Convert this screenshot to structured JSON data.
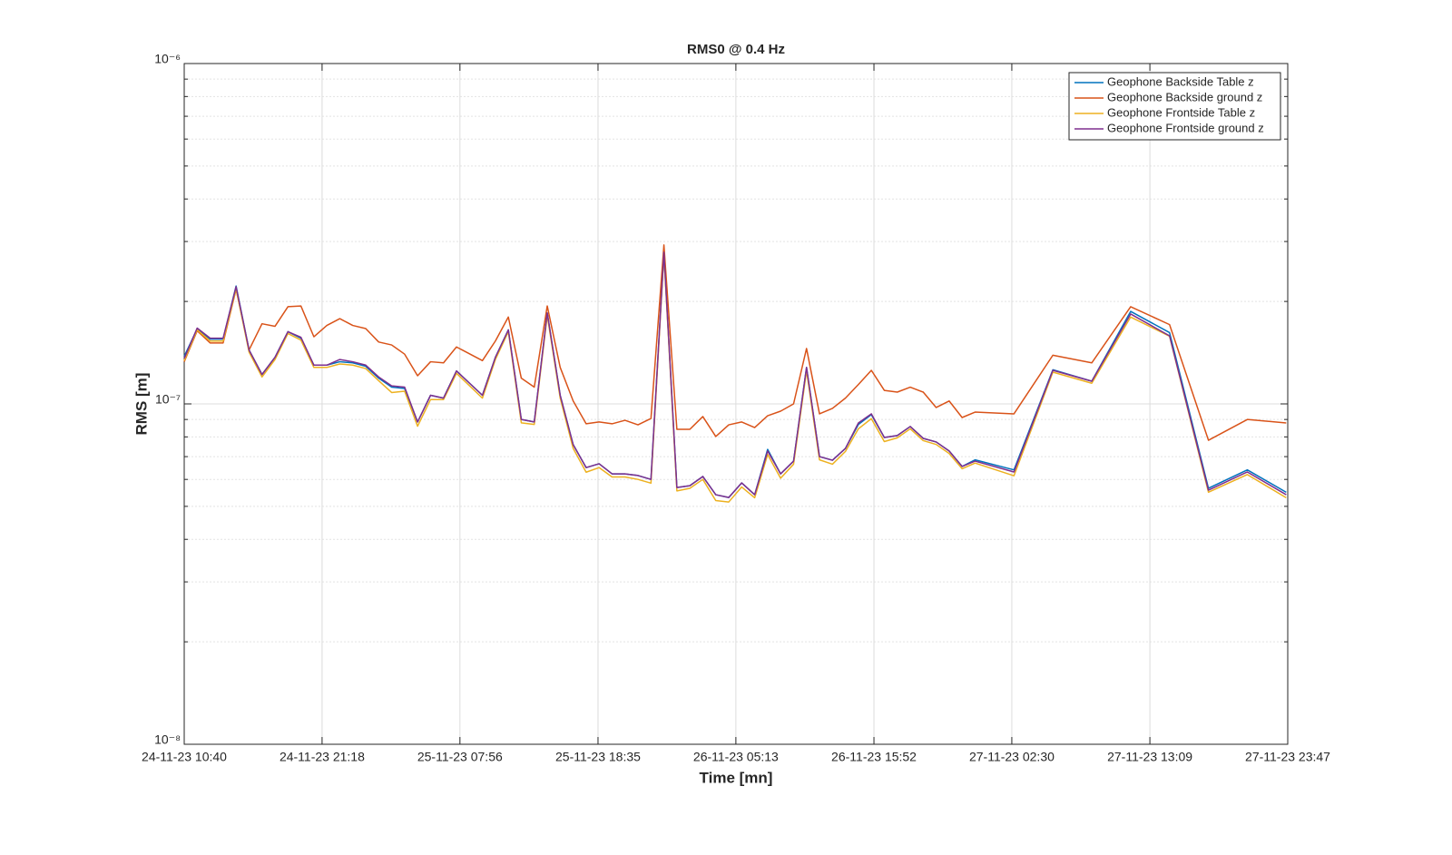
{
  "chart_data": {
    "type": "line",
    "title": "RMS0 @ 0.4 Hz",
    "x_label": "Time [mn]",
    "y_label": "RMS [m]",
    "log_y": true,
    "grid": true,
    "minor_grid": true,
    "legend_position": "top-right",
    "xlim": [
      "2023-11-24T10:40",
      "2023-11-27T23:47"
    ],
    "xticks": [
      {
        "value": "2023-11-24T10:40",
        "label": "24-11-23 10:40"
      },
      {
        "value": "2023-11-24T21:18",
        "label": "24-11-23 21:18"
      },
      {
        "value": "2023-11-25T07:56",
        "label": "25-11-23 07:56"
      },
      {
        "value": "2023-11-25T18:35",
        "label": "25-11-23 18:35"
      },
      {
        "value": "2023-11-26T05:13",
        "label": "26-11-23 05:13"
      },
      {
        "value": "2023-11-26T15:52",
        "label": "26-11-23 15:52"
      },
      {
        "value": "2023-11-27T02:30",
        "label": "27-11-23 02:30"
      },
      {
        "value": "2023-11-27T13:09",
        "label": "27-11-23 13:09"
      },
      {
        "value": "2023-11-27T23:47",
        "label": "27-11-23 23:47"
      }
    ],
    "ylim": [
      1e-08,
      1e-06
    ],
    "yticks": [
      {
        "value": 1e-08,
        "label": "10⁻⁸"
      },
      {
        "value": 1e-07,
        "label": "10⁻⁷"
      },
      {
        "value": 1e-06,
        "label": "10⁻⁶"
      }
    ],
    "x": [
      "2023-11-24T10:40",
      "2023-11-24T11:40",
      "2023-11-24T12:40",
      "2023-11-24T13:40",
      "2023-11-24T14:40",
      "2023-11-24T15:40",
      "2023-11-24T16:40",
      "2023-11-24T17:40",
      "2023-11-24T18:40",
      "2023-11-24T19:40",
      "2023-11-24T20:40",
      "2023-11-24T21:40",
      "2023-11-24T22:40",
      "2023-11-24T23:40",
      "2023-11-25T00:40",
      "2023-11-25T01:40",
      "2023-11-25T02:40",
      "2023-11-25T03:40",
      "2023-11-25T04:40",
      "2023-11-25T05:40",
      "2023-11-25T06:40",
      "2023-11-25T07:40",
      "2023-11-25T09:40",
      "2023-11-25T10:40",
      "2023-11-25T11:40",
      "2023-11-25T12:40",
      "2023-11-25T13:40",
      "2023-11-25T14:40",
      "2023-11-25T15:40",
      "2023-11-25T16:40",
      "2023-11-25T17:40",
      "2023-11-25T18:40",
      "2023-11-25T19:40",
      "2023-11-25T20:40",
      "2023-11-25T21:40",
      "2023-11-25T22:40",
      "2023-11-25T23:40",
      "2023-11-26T00:40",
      "2023-11-26T01:40",
      "2023-11-26T02:40",
      "2023-11-26T03:40",
      "2023-11-26T04:40",
      "2023-11-26T05:40",
      "2023-11-26T06:40",
      "2023-11-26T07:40",
      "2023-11-26T08:40",
      "2023-11-26T09:40",
      "2023-11-26T10:40",
      "2023-11-26T11:40",
      "2023-11-26T12:40",
      "2023-11-26T13:40",
      "2023-11-26T14:40",
      "2023-11-26T15:40",
      "2023-11-26T16:40",
      "2023-11-26T17:40",
      "2023-11-26T18:40",
      "2023-11-26T19:40",
      "2023-11-26T20:40",
      "2023-11-26T21:40",
      "2023-11-26T22:40",
      "2023-11-26T23:40",
      "2023-11-27T02:40",
      "2023-11-27T05:40",
      "2023-11-27T08:40",
      "2023-11-27T11:40",
      "2023-11-27T14:40",
      "2023-11-27T17:40",
      "2023-11-27T20:40",
      "2023-11-27T23:40"
    ],
    "series": [
      {
        "name": "Geophone Backside Table z",
        "color": "#0072BD",
        "values": [
          1.38e-07,
          1.66e-07,
          1.55e-07,
          1.55e-07,
          2.22e-07,
          1.44e-07,
          1.22e-07,
          1.37e-07,
          1.63e-07,
          1.56e-07,
          1.3e-07,
          1.3e-07,
          1.33e-07,
          1.32e-07,
          1.29e-07,
          1.19e-07,
          1.12e-07,
          1.11e-07,
          8.85e-08,
          1.06e-07,
          1.04e-07,
          1.25e-07,
          1.06e-07,
          1.37e-07,
          1.65e-07,
          9e-08,
          8.85e-08,
          1.85e-07,
          1.06e-07,
          7.59e-08,
          6.5e-08,
          6.67e-08,
          6.23e-08,
          6.23e-08,
          6.16e-08,
          6e-08,
          2.79e-07,
          5.68e-08,
          5.75e-08,
          6.12e-08,
          5.41e-08,
          5.31e-08,
          5.86e-08,
          5.41e-08,
          7.35e-08,
          6.23e-08,
          6.79e-08,
          1.28e-07,
          7e-08,
          6.83e-08,
          7.4e-08,
          8.7e-08,
          9.3e-08,
          7.97e-08,
          8.07e-08,
          8.58e-08,
          7.92e-08,
          7.73e-08,
          7.27e-08,
          6.55e-08,
          6.85e-08,
          6.4e-08,
          1.26e-07,
          1.166e-07,
          1.87e-07,
          1.62e-07,
          5.65e-08,
          6.4e-08,
          5.5e-08
        ]
      },
      {
        "name": "Geophone Backside ground z",
        "color": "#D95319",
        "values": [
          1.33e-07,
          1.64e-07,
          1.51e-07,
          1.51e-07,
          2.17e-07,
          1.44e-07,
          1.72e-07,
          1.69e-07,
          1.93e-07,
          1.94e-07,
          1.575e-07,
          1.7e-07,
          1.78e-07,
          1.7e-07,
          1.665e-07,
          1.52e-07,
          1.49e-07,
          1.4e-07,
          1.21e-07,
          1.33e-07,
          1.32e-07,
          1.47e-07,
          1.34e-07,
          1.53e-07,
          1.8e-07,
          1.19e-07,
          1.12e-07,
          1.94e-07,
          1.28e-07,
          1.02e-07,
          8.74e-08,
          8.85e-08,
          8.74e-08,
          8.95e-08,
          8.68e-08,
          9.06e-08,
          2.93e-07,
          8.42e-08,
          8.42e-08,
          9.18e-08,
          8.02e-08,
          8.68e-08,
          8.85e-08,
          8.52e-08,
          9.23e-08,
          9.52e-08,
          1e-07,
          1.455e-07,
          9.35e-08,
          9.7e-08,
          1.04e-07,
          1.14e-07,
          1.255e-07,
          1.096e-07,
          1.083e-07,
          1.12e-07,
          1.083e-07,
          9.76e-08,
          1.02e-07,
          9.12e-08,
          9.46e-08,
          9.35e-08,
          1.39e-07,
          1.32e-07,
          1.93e-07,
          1.71e-07,
          7.82e-08,
          9e-08,
          8.79e-08
        ]
      },
      {
        "name": "Geophone Frontside Table z",
        "color": "#EDB120",
        "values": [
          1.34e-07,
          1.65e-07,
          1.53e-07,
          1.53e-07,
          2.18e-07,
          1.42e-07,
          1.2e-07,
          1.35e-07,
          1.61e-07,
          1.54e-07,
          1.28e-07,
          1.28e-07,
          1.31e-07,
          1.3e-07,
          1.27e-07,
          1.17e-07,
          1.08e-07,
          1.09e-07,
          8.6e-08,
          1.03e-07,
          1.03e-07,
          1.23e-07,
          1.04e-07,
          1.35e-07,
          1.63e-07,
          8.8e-08,
          8.7e-08,
          1.82e-07,
          1.04e-07,
          7.4e-08,
          6.3e-08,
          6.5e-08,
          6.1e-08,
          6.1e-08,
          6e-08,
          5.85e-08,
          2.75e-07,
          5.55e-08,
          5.65e-08,
          6e-08,
          5.2e-08,
          5.15e-08,
          5.7e-08,
          5.3e-08,
          7.1e-08,
          6.05e-08,
          6.65e-08,
          1.25e-07,
          6.85e-08,
          6.65e-08,
          7.25e-08,
          8.45e-08,
          9.05e-08,
          7.75e-08,
          7.95e-08,
          8.45e-08,
          7.8e-08,
          7.6e-08,
          7.15e-08,
          6.45e-08,
          6.7e-08,
          6.15e-08,
          1.24e-07,
          1.15e-07,
          1.8e-07,
          1.58e-07,
          5.5e-08,
          6.2e-08,
          5.3e-08
        ]
      },
      {
        "name": "Geophone Frontside ground z",
        "color": "#7E2F8E",
        "values": [
          1.36e-07,
          1.67e-07,
          1.56e-07,
          1.56e-07,
          2.21e-07,
          1.44e-07,
          1.22e-07,
          1.37e-07,
          1.63e-07,
          1.57e-07,
          1.3e-07,
          1.3e-07,
          1.35e-07,
          1.33e-07,
          1.3e-07,
          1.2e-07,
          1.13e-07,
          1.12e-07,
          8.85e-08,
          1.06e-07,
          1.04e-07,
          1.25e-07,
          1.06e-07,
          1.37e-07,
          1.65e-07,
          9e-08,
          8.85e-08,
          1.85e-07,
          1.06e-07,
          7.59e-08,
          6.5e-08,
          6.67e-08,
          6.23e-08,
          6.23e-08,
          6.16e-08,
          6e-08,
          2.79e-07,
          5.68e-08,
          5.75e-08,
          6.12e-08,
          5.41e-08,
          5.31e-08,
          5.86e-08,
          5.41e-08,
          7.27e-08,
          6.23e-08,
          6.79e-08,
          1.28e-07,
          7e-08,
          6.83e-08,
          7.4e-08,
          8.79e-08,
          9.35e-08,
          7.97e-08,
          8.07e-08,
          8.58e-08,
          7.92e-08,
          7.73e-08,
          7.27e-08,
          6.55e-08,
          6.79e-08,
          6.31e-08,
          1.255e-07,
          1.166e-07,
          1.837e-07,
          1.585e-07,
          5.58e-08,
          6.31e-08,
          5.41e-08
        ]
      }
    ]
  }
}
